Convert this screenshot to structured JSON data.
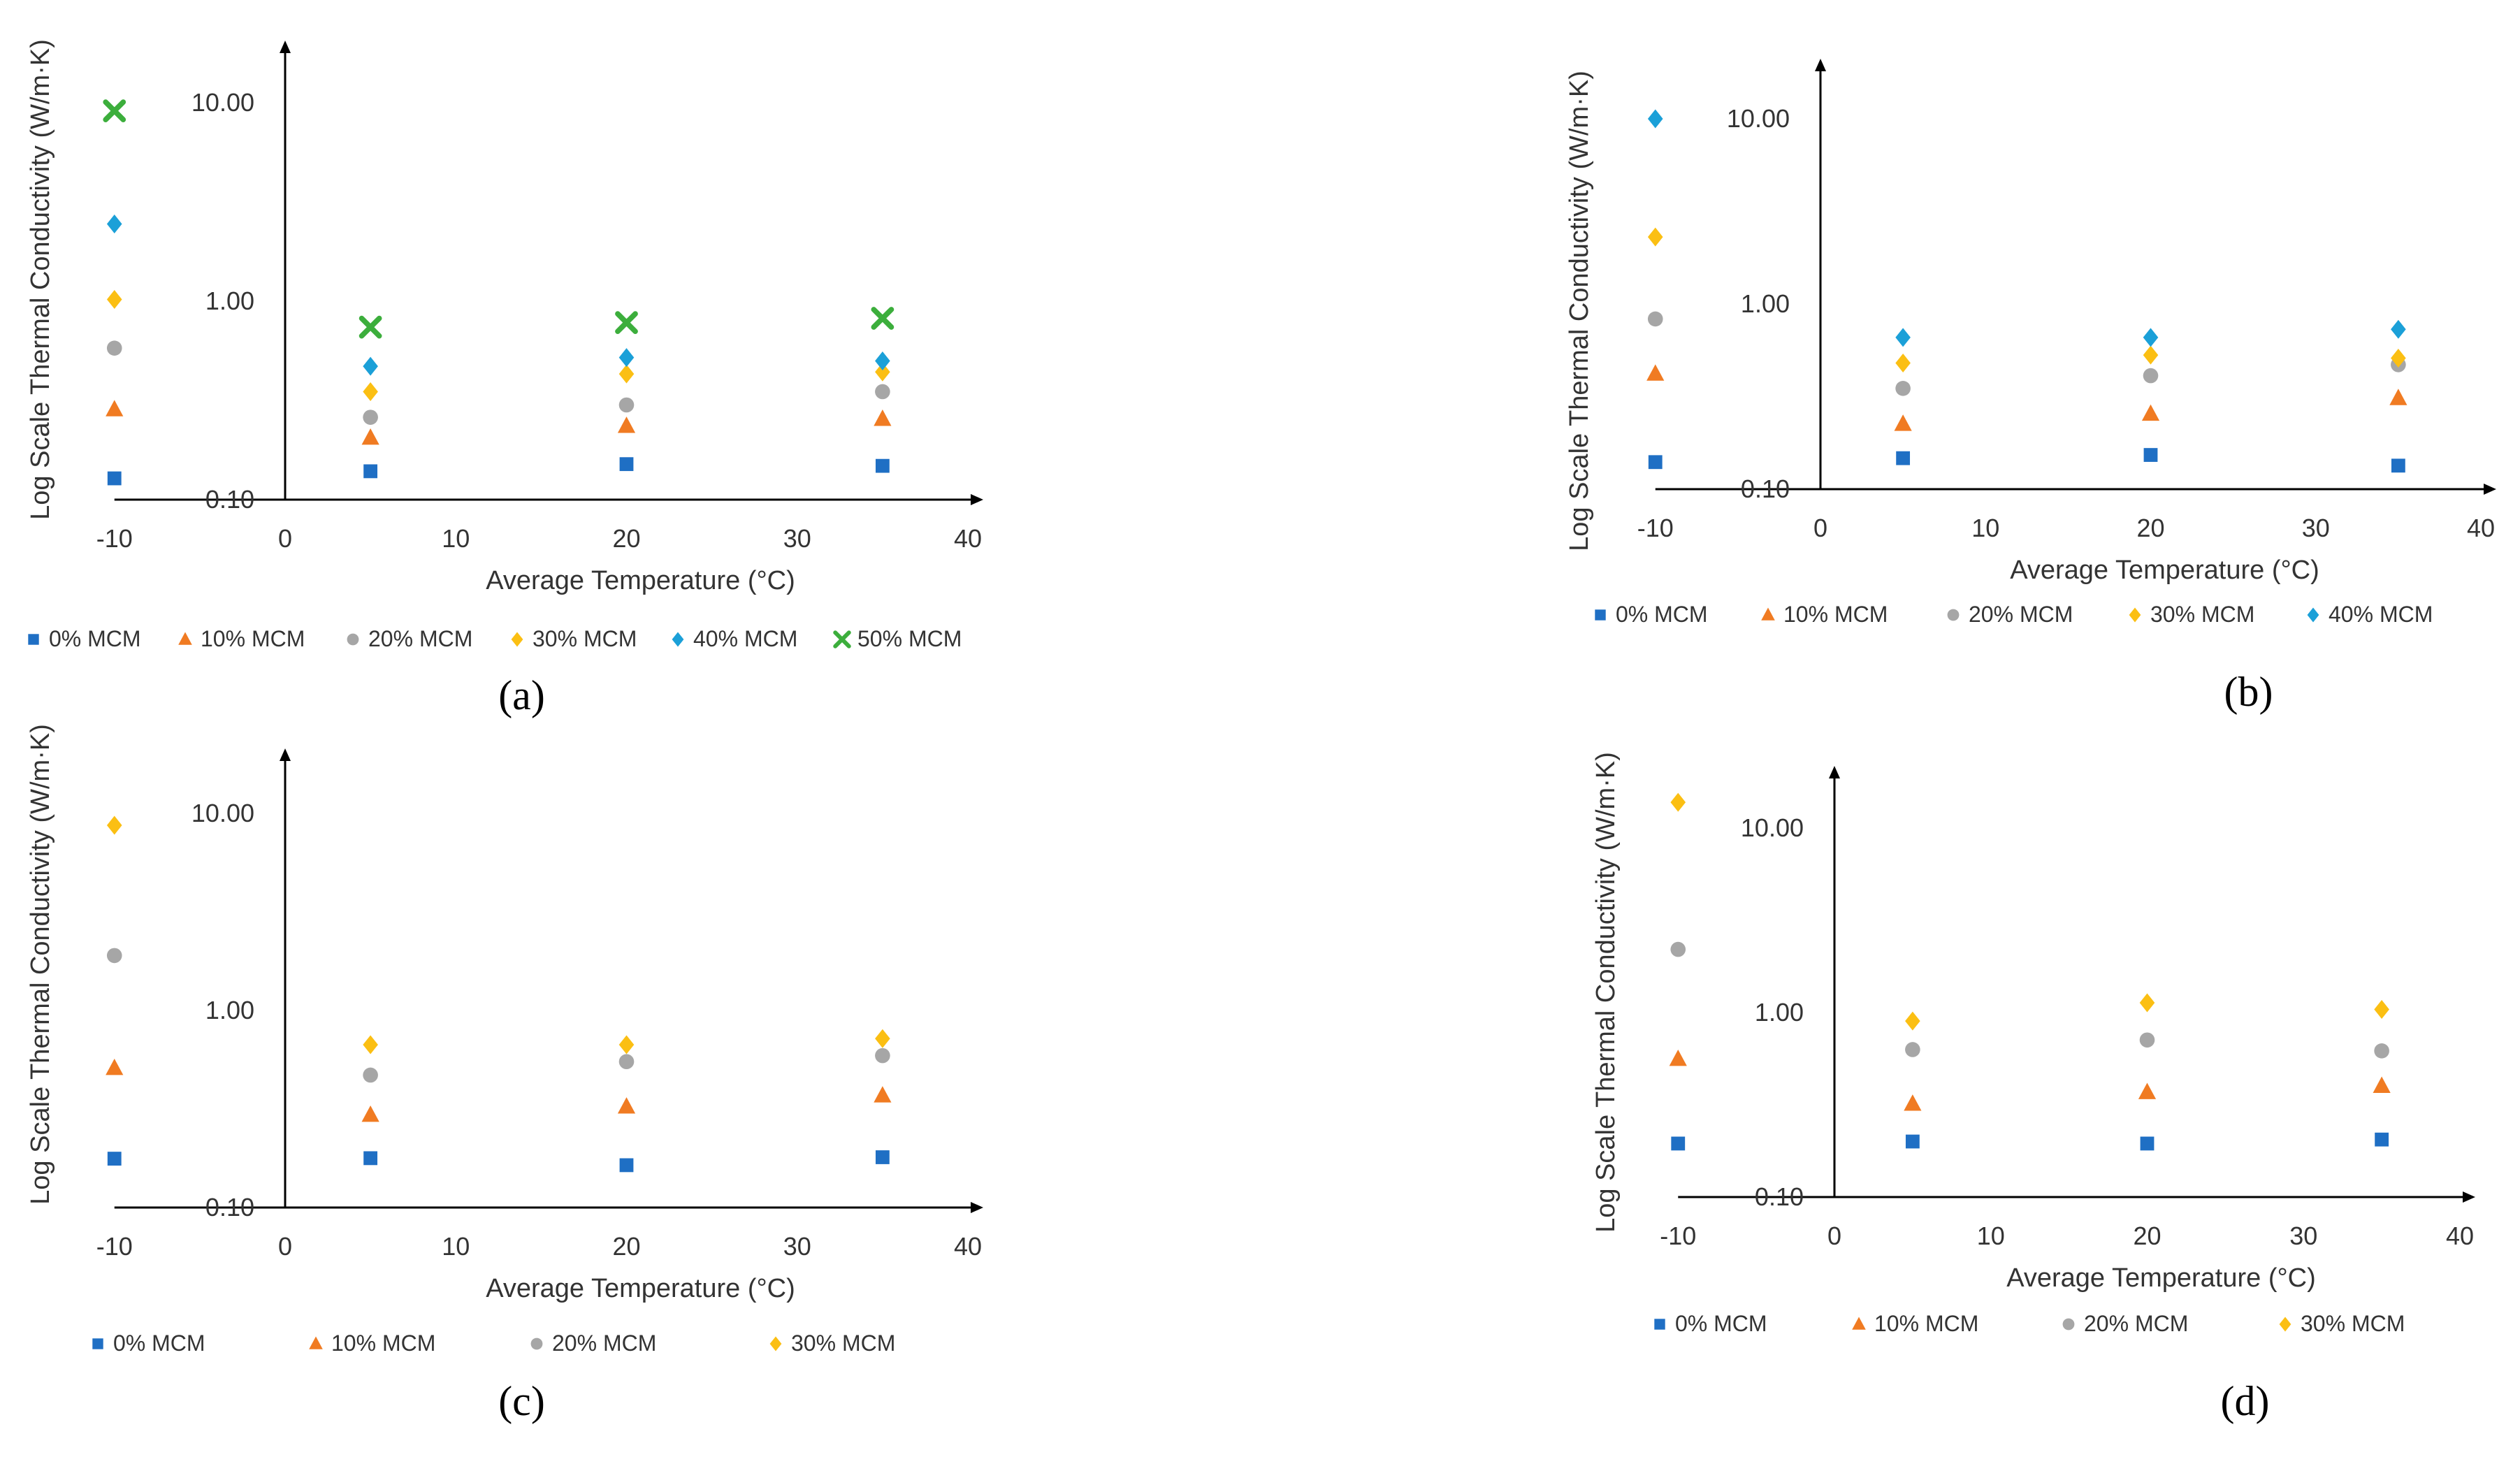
{
  "figure": {
    "series_colors": {
      "0% MCM": "#1f6fc4",
      "10% MCM": "#f07b22",
      "20% MCM": "#a6a6a6",
      "30% MCM": "#fbbf13",
      "40% MCM": "#1ba0d8",
      "50% MCM": "#3cae3c"
    },
    "series_markers": {
      "0% MCM": "square-icon",
      "10% MCM": "triangle-icon",
      "20% MCM": "circle-icon",
      "30% MCM": "diamond-icon",
      "40% MCM": "diamond-icon",
      "50% MCM": "x-icon"
    }
  },
  "chart_data": [
    {
      "panel": "(a)",
      "type": "scatter",
      "xlabel": "Average Temperature (°C)",
      "ylabel": "Log Scale Thermal Conductivity (W/m·K)",
      "xlim": [
        -10,
        40
      ],
      "xticks": [
        "-10",
        "0",
        "10",
        "20",
        "30",
        "40"
      ],
      "yscale": "log",
      "ylim": [
        0.1,
        20
      ],
      "yticks": [
        "0.10",
        "1.00",
        "10.00"
      ],
      "x": [
        -10,
        5,
        20,
        35
      ],
      "series": [
        {
          "name": "0% MCM",
          "values": [
            0.128,
            0.139,
            0.151,
            0.148
          ]
        },
        {
          "name": "10% MCM",
          "values": [
            0.285,
            0.205,
            0.235,
            0.255
          ]
        },
        {
          "name": "20% MCM",
          "values": [
            0.58,
            0.26,
            0.3,
            0.35
          ]
        },
        {
          "name": "30% MCM",
          "values": [
            1.02,
            0.35,
            0.43,
            0.44
          ]
        },
        {
          "name": "40% MCM",
          "values": [
            2.45,
            0.47,
            0.52,
            0.5
          ]
        },
        {
          "name": "50% MCM",
          "values": [
            9.1,
            0.74,
            0.78,
            0.82
          ]
        }
      ]
    },
    {
      "panel": "(b)",
      "type": "scatter",
      "xlabel": "Average Temperature (°C)",
      "ylabel": "Log Scale Thermal Conductivity (W/m·K)",
      "xlim": [
        -10,
        40
      ],
      "xticks": [
        "-10",
        "0",
        "10",
        "20",
        "30",
        "40"
      ],
      "yscale": "log",
      "ylim": [
        0.1,
        20
      ],
      "yticks": [
        "0.10",
        "1.00",
        "10.00"
      ],
      "x": [
        -10,
        5,
        20,
        35
      ],
      "series": [
        {
          "name": "0% MCM",
          "values": [
            0.14,
            0.147,
            0.153,
            0.134
          ]
        },
        {
          "name": "10% MCM",
          "values": [
            0.42,
            0.225,
            0.255,
            0.31
          ]
        },
        {
          "name": "20% MCM",
          "values": [
            0.83,
            0.35,
            0.41,
            0.47
          ]
        },
        {
          "name": "30% MCM",
          "values": [
            2.3,
            0.48,
            0.53,
            0.51
          ]
        },
        {
          "name": "40% MCM",
          "values": [
            10.0,
            0.66,
            0.66,
            0.73
          ]
        }
      ]
    },
    {
      "panel": "(c)",
      "type": "scatter",
      "xlabel": "Average Temperature (°C)",
      "ylabel": "Log Scale Thermal Conductivity (W/m·K)",
      "xlim": [
        -10,
        40
      ],
      "xticks": [
        "-10",
        "0",
        "10",
        "20",
        "30",
        "40"
      ],
      "yscale": "log",
      "ylim": [
        0.1,
        20
      ],
      "yticks": [
        "0.10",
        "1.00",
        "10.00"
      ],
      "x": [
        -10,
        5,
        20,
        35
      ],
      "series": [
        {
          "name": "0% MCM",
          "values": [
            0.177,
            0.178,
            0.164,
            0.18
          ]
        },
        {
          "name": "10% MCM",
          "values": [
            0.51,
            0.295,
            0.325,
            0.37
          ]
        },
        {
          "name": "20% MCM",
          "values": [
            1.9,
            0.47,
            0.55,
            0.59
          ]
        },
        {
          "name": "30% MCM",
          "values": [
            8.7,
            0.67,
            0.67,
            0.72
          ]
        }
      ]
    },
    {
      "panel": "(d)",
      "type": "scatter",
      "xlabel": "Average Temperature (°C)",
      "ylabel": "Log Scale Thermal Conductivity (W/m·K)",
      "xlim": [
        -10,
        40
      ],
      "xticks": [
        "-10",
        "0",
        "10",
        "20",
        "30",
        "40"
      ],
      "yscale": "log",
      "ylim": [
        0.1,
        20
      ],
      "yticks": [
        "0.10",
        "1.00",
        "10.00"
      ],
      "x": [
        -10,
        5,
        20,
        35
      ],
      "series": [
        {
          "name": "0% MCM",
          "values": [
            0.195,
            0.2,
            0.195,
            0.205
          ]
        },
        {
          "name": "10% MCM",
          "values": [
            0.56,
            0.32,
            0.37,
            0.4
          ]
        },
        {
          "name": "20% MCM",
          "values": [
            2.2,
            0.63,
            0.71,
            0.62
          ]
        },
        {
          "name": "30% MCM",
          "values": [
            13.8,
            0.9,
            1.13,
            1.04
          ]
        }
      ]
    }
  ]
}
